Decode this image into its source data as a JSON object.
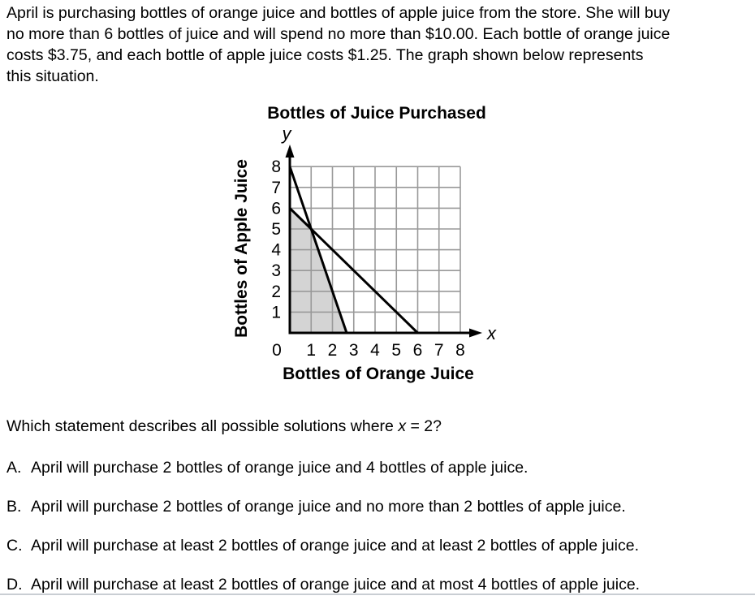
{
  "problem": {
    "lines": [
      "April is purchasing bottles of orange juice and bottles of apple juice from the store. She will buy",
      "no more than 6 bottles of juice and will spend no more than $10.00. Each bottle of orange juice",
      "costs $3.75, and each bottle of apple juice costs $1.25. The graph shown below represents",
      "this situation."
    ]
  },
  "chart_data": {
    "type": "line",
    "title": "Bottles of Juice Purchased",
    "xlabel": "Bottles of Orange Juice",
    "ylabel": "Bottles of Apple Juice",
    "x_letter": "x",
    "y_letter": "y",
    "xlim": [
      0,
      8
    ],
    "ylim": [
      0,
      8
    ],
    "x_ticks": [
      "0",
      "1",
      "2",
      "3",
      "4",
      "5",
      "6",
      "7",
      "8"
    ],
    "y_ticks": [
      "1",
      "2",
      "3",
      "4",
      "5",
      "6",
      "7",
      "8"
    ],
    "grid": true,
    "grid_color": "#999999",
    "line_color": "#000000",
    "series": [
      {
        "name": "steep-boundary-line",
        "points": [
          [
            0,
            8
          ],
          [
            2.6667,
            0
          ]
        ]
      },
      {
        "name": "shallow-boundary-line",
        "points": [
          [
            0,
            6
          ],
          [
            6,
            0
          ]
        ]
      }
    ],
    "shaded_region": {
      "color": "#d4d4d4",
      "points": [
        [
          0,
          0
        ],
        [
          0,
          6
        ],
        [
          1,
          5
        ],
        [
          2.6667,
          0
        ]
      ]
    },
    "intersection_point": [
      1,
      5
    ]
  },
  "question": {
    "prefix": "Which statement describes all possible solutions where ",
    "variable": "x",
    "suffix": " = 2?"
  },
  "options": [
    {
      "letter": "A.",
      "text": "April will purchase 2 bottles of orange juice and 4 bottles of apple juice."
    },
    {
      "letter": "B.",
      "text": "April will purchase 2 bottles of orange juice and no more than 2 bottles of apple juice."
    },
    {
      "letter": "C.",
      "text": "April will purchase at least 2 bottles of orange juice and at least 2 bottles of apple juice."
    },
    {
      "letter": "D.",
      "text": "April will purchase at least 2 bottles of orange juice and at most 4 bottles of apple juice."
    }
  ]
}
